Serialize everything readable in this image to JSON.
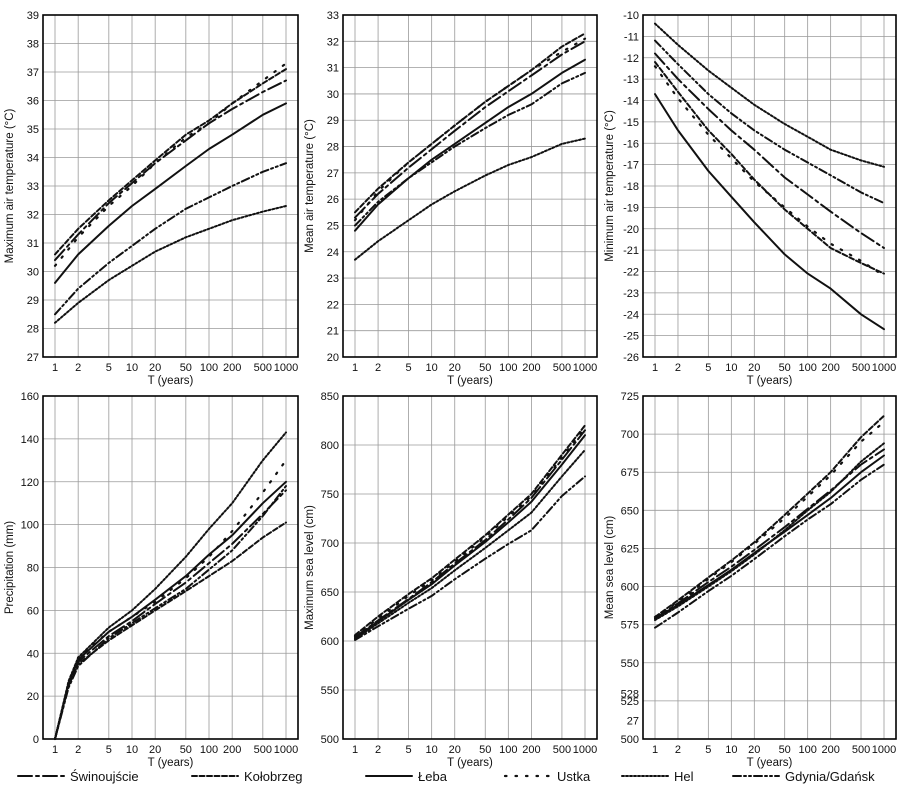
{
  "legend": {
    "entries": [
      {
        "key": "swinoujscie",
        "label": "Świnoujście"
      },
      {
        "key": "kolobrzeg",
        "label": "Kołobrzeg"
      },
      {
        "key": "leba",
        "label": "Łeba"
      },
      {
        "key": "ustka",
        "label": "Ustka"
      },
      {
        "key": "hel",
        "label": "Hel"
      },
      {
        "key": "gdynia",
        "label": "Gdynia/Gdańsk"
      }
    ]
  },
  "styles": {
    "swinoujscie": {
      "dash": "14 4 3 4",
      "width": 2.0,
      "color": "#111111"
    },
    "kolobrzeg": {
      "dash": "5 2.5",
      "width": 2.0,
      "color": "#111111"
    },
    "leba": {
      "dash": "",
      "width": 2.0,
      "color": "#111111"
    },
    "ustka": {
      "dash": "1.5 9",
      "width": 2.2,
      "color": "#111111"
    },
    "hel": {
      "dash": "2 2",
      "width": 2.0,
      "color": "#111111"
    },
    "gdynia": {
      "dash": "8 3 2 3 2 3",
      "width": 2.0,
      "color": "#111111"
    }
  },
  "chart_data": [
    {
      "type": "line",
      "x_scale": "log",
      "x": [
        1,
        2,
        5,
        10,
        20,
        50,
        100,
        200,
        500,
        1000
      ],
      "x_ticks": [
        "1",
        "2",
        "5",
        "10",
        "20",
        "50",
        "100",
        "200",
        "500",
        "1000"
      ],
      "xlabel": "T (years)",
      "ylabel": "Maximum air temperature (°C)",
      "ylim": [
        27,
        39
      ],
      "y_ticks": [
        27,
        28,
        29,
        30,
        31,
        32,
        33,
        34,
        35,
        36,
        37,
        38,
        39
      ],
      "grid": true,
      "series": [
        {
          "key": "swinoujscie",
          "values": [
            30.4,
            31.3,
            32.4,
            33.1,
            33.8,
            34.6,
            35.2,
            35.7,
            36.3,
            36.7
          ]
        },
        {
          "key": "kolobrzeg",
          "values": [
            30.6,
            31.5,
            32.5,
            33.2,
            33.9,
            34.8,
            35.3,
            35.9,
            36.6,
            37.1
          ]
        },
        {
          "key": "leba",
          "values": [
            29.6,
            30.6,
            31.6,
            32.3,
            32.9,
            33.7,
            34.3,
            34.8,
            35.5,
            35.9
          ]
        },
        {
          "key": "ustka",
          "values": [
            30.2,
            31.2,
            32.3,
            33.0,
            33.8,
            34.7,
            35.2,
            35.9,
            36.7,
            37.3
          ]
        },
        {
          "key": "hel",
          "values": [
            28.2,
            28.9,
            29.7,
            30.2,
            30.7,
            31.2,
            31.5,
            31.8,
            32.1,
            32.3
          ]
        },
        {
          "key": "gdynia",
          "values": [
            28.5,
            29.4,
            30.3,
            30.9,
            31.5,
            32.2,
            32.6,
            33.0,
            33.5,
            33.8
          ]
        }
      ]
    },
    {
      "type": "line",
      "x_scale": "log",
      "x": [
        1,
        2,
        5,
        10,
        20,
        50,
        100,
        200,
        500,
        1000
      ],
      "x_ticks": [
        "1",
        "2",
        "5",
        "10",
        "20",
        "50",
        "100",
        "200",
        "500",
        "1000"
      ],
      "xlabel": "T (years)",
      "ylabel": "Mean air temperature (°C)",
      "ylim": [
        20,
        33
      ],
      "y_ticks": [
        20,
        21,
        22,
        23,
        24,
        25,
        26,
        27,
        28,
        29,
        30,
        31,
        32,
        33
      ],
      "grid": true,
      "series": [
        {
          "key": "swinoujscie",
          "values": [
            25.3,
            26.2,
            27.2,
            27.9,
            28.6,
            29.5,
            30.1,
            30.7,
            31.5,
            32.0
          ]
        },
        {
          "key": "kolobrzeg",
          "values": [
            25.5,
            26.4,
            27.4,
            28.1,
            28.8,
            29.7,
            30.3,
            30.9,
            31.8,
            32.3
          ]
        },
        {
          "key": "leba",
          "values": [
            24.8,
            25.8,
            26.8,
            27.5,
            28.1,
            28.9,
            29.5,
            30.0,
            30.8,
            31.3
          ]
        },
        {
          "key": "ustka",
          "values": [
            25.2,
            26.3,
            27.4,
            28.1,
            28.8,
            29.7,
            30.3,
            30.9,
            31.6,
            32.1
          ]
        },
        {
          "key": "hel",
          "values": [
            23.7,
            24.4,
            25.2,
            25.8,
            26.3,
            26.9,
            27.3,
            27.6,
            28.1,
            28.3
          ]
        },
        {
          "key": "gdynia",
          "values": [
            25.0,
            25.9,
            26.8,
            27.4,
            28.0,
            28.7,
            29.2,
            29.6,
            30.4,
            30.8
          ]
        }
      ]
    },
    {
      "type": "line",
      "x_scale": "log",
      "x": [
        1,
        2,
        5,
        10,
        20,
        50,
        100,
        200,
        500,
        1000
      ],
      "x_ticks": [
        "1",
        "2",
        "5",
        "10",
        "20",
        "50",
        "100",
        "200",
        "500",
        "1000"
      ],
      "xlabel": "T (years)",
      "ylabel": "Minimum air temperature (°C)",
      "ylim": [
        -26,
        -10
      ],
      "y_ticks": [
        -10,
        -11,
        -12,
        -13,
        -14,
        -15,
        -16,
        -17,
        -18,
        -19,
        -20,
        -21,
        -22,
        -23,
        -24,
        -25,
        -26
      ],
      "grid": true,
      "series": [
        {
          "key": "swinoujscie",
          "values": [
            -11.8,
            -13.0,
            -14.4,
            -15.4,
            -16.3,
            -17.6,
            -18.4,
            -19.2,
            -20.2,
            -20.9
          ]
        },
        {
          "key": "kolobrzeg",
          "values": [
            -12.2,
            -13.6,
            -15.4,
            -16.5,
            -17.7,
            -19.1,
            -20.0,
            -20.9,
            -21.6,
            -22.1
          ]
        },
        {
          "key": "leba",
          "values": [
            -13.7,
            -15.4,
            -17.3,
            -18.5,
            -19.7,
            -21.2,
            -22.1,
            -22.8,
            -24.0,
            -24.7
          ]
        },
        {
          "key": "ustka",
          "values": [
            -12.4,
            -13.9,
            -15.6,
            -16.7,
            -17.8,
            -19.0,
            -19.9,
            -20.7,
            -21.5,
            -22.2
          ]
        },
        {
          "key": "hel",
          "values": [
            -10.4,
            -11.4,
            -12.6,
            -13.4,
            -14.2,
            -15.1,
            -15.7,
            -16.3,
            -16.8,
            -17.1
          ]
        },
        {
          "key": "gdynia",
          "values": [
            -11.2,
            -12.3,
            -13.7,
            -14.6,
            -15.4,
            -16.3,
            -16.9,
            -17.5,
            -18.3,
            -18.8
          ]
        }
      ]
    },
    {
      "type": "line",
      "x_scale": "log",
      "x": [
        1,
        1.5,
        2,
        5,
        10,
        20,
        50,
        100,
        200,
        500,
        1000
      ],
      "x_ticks": [
        "1",
        "2",
        "5",
        "10",
        "20",
        "50",
        "100",
        "200",
        "500",
        "1000"
      ],
      "xlabel": "T (years)",
      "ylabel": "Precipitation (mm)",
      "ylim": [
        0,
        160
      ],
      "y_ticks": [
        0,
        20,
        40,
        60,
        80,
        100,
        120,
        140,
        160
      ],
      "grid": true,
      "series": [
        {
          "key": "swinoujscie",
          "values": [
            0,
            26,
            36,
            48,
            55,
            63,
            73,
            82,
            91,
            105,
            116
          ]
        },
        {
          "key": "kolobrzeg",
          "values": [
            0,
            25,
            35,
            46,
            53,
            60,
            69,
            76,
            83,
            94,
            101
          ]
        },
        {
          "key": "leba",
          "values": [
            0,
            26,
            37,
            50,
            57,
            65,
            76,
            86,
            95,
            110,
            120
          ]
        },
        {
          "key": "ustka",
          "values": [
            0,
            25,
            38,
            50,
            57,
            64,
            75,
            85,
            97,
            115,
            130
          ]
        },
        {
          "key": "hel",
          "values": [
            0,
            27,
            38,
            52,
            60,
            70,
            85,
            98,
            110,
            130,
            143
          ]
        },
        {
          "key": "gdynia",
          "values": [
            0,
            24,
            34,
            47,
            54,
            61,
            70,
            79,
            88,
            104,
            118
          ]
        }
      ]
    },
    {
      "type": "line",
      "x_scale": "log",
      "x": [
        1,
        2,
        5,
        10,
        20,
        50,
        100,
        200,
        500,
        1000
      ],
      "x_ticks": [
        "1",
        "2",
        "5",
        "10",
        "20",
        "50",
        "100",
        "200",
        "500",
        "1000"
      ],
      "xlabel": "T (years)",
      "ylabel": "Maximum sea level (cm)",
      "ylim": [
        500,
        850
      ],
      "y_ticks": [
        500,
        550,
        600,
        650,
        700,
        750,
        800,
        850
      ],
      "grid": true,
      "series": [
        {
          "key": "swinoujscie",
          "values": [
            604,
            621,
            643,
            660,
            679,
            703,
            724,
            746,
            785,
            815
          ]
        },
        {
          "key": "kolobrzeg",
          "values": [
            606,
            625,
            648,
            664,
            683,
            708,
            729,
            750,
            790,
            820
          ]
        },
        {
          "key": "leba",
          "values": [
            603,
            620,
            642,
            658,
            677,
            701,
            721,
            742,
            780,
            810
          ]
        },
        {
          "key": "ustka",
          "values": [
            605,
            623,
            646,
            662,
            681,
            706,
            727,
            748,
            787,
            818
          ]
        },
        {
          "key": "hel",
          "values": [
            602,
            618,
            639,
            654,
            672,
            695,
            713,
            731,
            768,
            795
          ]
        },
        {
          "key": "gdynia",
          "values": [
            601,
            615,
            633,
            646,
            663,
            684,
            699,
            713,
            748,
            768
          ]
        }
      ]
    },
    {
      "type": "line",
      "x_scale": "log",
      "x": [
        1,
        2,
        5,
        10,
        20,
        50,
        100,
        200,
        500,
        1000
      ],
      "x_ticks": [
        "1",
        "2",
        "5",
        "10",
        "20",
        "50",
        "100",
        "200",
        "500",
        "1000"
      ],
      "xlabel": "T (years)",
      "ylabel": "Mean sea level (cm)",
      "ylim": [
        500,
        725
      ],
      "y_ticks": [
        500,
        525,
        550,
        575,
        600,
        625,
        650,
        675,
        700,
        725
      ],
      "stray_ticks": [
        "528",
        "27"
      ],
      "grid": true,
      "series": [
        {
          "key": "swinoujscie",
          "values": [
            579,
            589,
            603,
            613,
            624,
            639,
            651,
            663,
            680,
            690
          ]
        },
        {
          "key": "kolobrzeg",
          "values": [
            580,
            591,
            606,
            617,
            629,
            647,
            661,
            675,
            698,
            712
          ]
        },
        {
          "key": "leba",
          "values": [
            579,
            588,
            601,
            611,
            622,
            636,
            647,
            658,
            675,
            686
          ]
        },
        {
          "key": "ustka",
          "values": [
            580,
            590,
            605,
            616,
            628,
            645,
            659,
            673,
            695,
            708
          ]
        },
        {
          "key": "hel",
          "values": [
            578,
            587,
            600,
            610,
            621,
            637,
            650,
            662,
            682,
            694
          ]
        },
        {
          "key": "gdynia",
          "values": [
            573,
            583,
            597,
            607,
            618,
            633,
            644,
            654,
            670,
            680
          ]
        }
      ]
    }
  ]
}
